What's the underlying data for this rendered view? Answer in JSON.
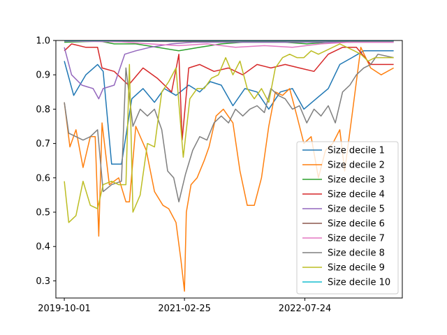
{
  "chart_data": {
    "type": "line",
    "title": "",
    "xlabel": "",
    "ylabel": "",
    "x_start": "2019-10-01",
    "x_end": "2023-08-07",
    "xlim": [
      "2019-08-26",
      "2023-09-13"
    ],
    "ylim": [
      0.25,
      1.0
    ],
    "x_ticks": [
      "2019-10-01",
      "2021-02-25",
      "2022-07-24"
    ],
    "y_ticks": [
      "0.3",
      "0.4",
      "0.5",
      "0.6",
      "0.7",
      "0.8",
      "0.9",
      "1.0"
    ],
    "grid": false,
    "legend_position": "lower-right",
    "series": [
      {
        "name": "Size decile 1",
        "color": "#1f77b4",
        "x": [
          "2019-10-01",
          "2019-11-10",
          "2020-01-01",
          "2020-02-20",
          "2020-03-15",
          "2020-04-20",
          "2020-06-01",
          "2020-07-15",
          "2020-09-01",
          "2020-10-20",
          "2020-12-01",
          "2021-01-20",
          "2021-03-15",
          "2021-05-01",
          "2021-06-15",
          "2021-08-01",
          "2021-09-20",
          "2021-11-10",
          "2022-01-01",
          "2022-02-20",
          "2022-04-10",
          "2022-06-01",
          "2022-07-20",
          "2022-09-10",
          "2022-11-01",
          "2022-12-20",
          "2023-02-10",
          "2023-04-01",
          "2023-06-01",
          "2023-08-07"
        ],
        "y": [
          0.94,
          0.84,
          0.9,
          0.93,
          0.91,
          0.64,
          0.64,
          0.83,
          0.86,
          0.82,
          0.86,
          0.84,
          0.87,
          0.85,
          0.88,
          0.87,
          0.81,
          0.86,
          0.85,
          0.8,
          0.85,
          0.86,
          0.8,
          0.83,
          0.86,
          0.93,
          0.95,
          0.97,
          0.97,
          0.97
        ]
      },
      {
        "name": "Size decile 2",
        "color": "#ff7f0e",
        "x": [
          "2019-10-01",
          "2019-10-25",
          "2019-11-20",
          "2019-12-20",
          "2020-01-20",
          "2020-02-10",
          "2020-02-25",
          "2020-03-10",
          "2020-04-10",
          "2020-05-20",
          "2020-06-20",
          "2020-07-05",
          "2020-08-01",
          "2020-09-15",
          "2020-10-20",
          "2020-11-25",
          "2020-12-20",
          "2021-01-20",
          "2021-02-10",
          "2021-02-25",
          "2021-03-05",
          "2021-03-25",
          "2021-04-20",
          "2021-05-20",
          "2021-06-10",
          "2021-07-10",
          "2021-08-10",
          "2021-09-20",
          "2021-10-20",
          "2021-11-20",
          "2021-12-20",
          "2022-01-20",
          "2022-02-20",
          "2022-03-20",
          "2022-04-20",
          "2022-05-20",
          "2022-06-20",
          "2022-07-20",
          "2022-08-20",
          "2022-09-20",
          "2022-10-20",
          "2022-11-20",
          "2022-12-20",
          "2023-01-10",
          "2023-02-10",
          "2023-03-20",
          "2023-05-01",
          "2023-06-15",
          "2023-08-07"
        ],
        "y": [
          0.82,
          0.69,
          0.74,
          0.63,
          0.72,
          0.72,
          0.43,
          0.76,
          0.58,
          0.6,
          0.53,
          0.53,
          0.75,
          0.68,
          0.56,
          0.52,
          0.51,
          0.47,
          0.36,
          0.27,
          0.5,
          0.58,
          0.6,
          0.65,
          0.69,
          0.78,
          0.8,
          0.76,
          0.62,
          0.52,
          0.52,
          0.6,
          0.75,
          0.85,
          0.84,
          0.86,
          0.78,
          0.7,
          0.72,
          0.6,
          0.68,
          0.7,
          0.74,
          0.62,
          0.78,
          0.98,
          0.92,
          0.9,
          0.92
        ]
      },
      {
        "name": "Size decile 3",
        "color": "#2ca02c",
        "x": [
          "2019-10-01",
          "2020-03-01",
          "2020-05-01",
          "2020-08-01",
          "2020-11-01",
          "2021-02-01",
          "2021-05-01",
          "2021-08-01",
          "2021-11-01",
          "2022-02-01",
          "2022-05-01",
          "2022-08-01",
          "2022-11-01",
          "2023-02-01",
          "2023-05-01",
          "2023-08-07"
        ],
        "y": [
          0.995,
          0.998,
          0.99,
          0.99,
          0.98,
          0.97,
          0.98,
          0.99,
          0.995,
          0.995,
          0.995,
          0.99,
          0.995,
          0.995,
          0.998,
          0.998
        ]
      },
      {
        "name": "Size decile 4",
        "color": "#d62728",
        "x": [
          "2019-10-01",
          "2019-11-01",
          "2020-01-01",
          "2020-02-20",
          "2020-03-10",
          "2020-05-01",
          "2020-07-01",
          "2020-09-01",
          "2020-11-01",
          "2021-01-01",
          "2021-02-01",
          "2021-02-15",
          "2021-03-15",
          "2021-05-01",
          "2021-07-01",
          "2021-09-01",
          "2021-11-01",
          "2022-01-01",
          "2022-03-01",
          "2022-05-01",
          "2022-07-01",
          "2022-09-01",
          "2022-11-01",
          "2023-01-01",
          "2023-03-01",
          "2023-05-01",
          "2023-08-07"
        ],
        "y": [
          0.97,
          0.99,
          0.98,
          0.98,
          0.92,
          0.91,
          0.87,
          0.92,
          0.89,
          0.85,
          0.96,
          0.71,
          0.92,
          0.93,
          0.91,
          0.92,
          0.9,
          0.93,
          0.92,
          0.93,
          0.92,
          0.91,
          0.96,
          0.98,
          0.98,
          0.93,
          0.93
        ]
      },
      {
        "name": "Size decile 5",
        "color": "#9467bd",
        "x": [
          "2019-10-01",
          "2019-11-01",
          "2019-12-15",
          "2020-02-01",
          "2020-02-25",
          "2020-03-15",
          "2020-05-01",
          "2020-06-15",
          "2020-08-01",
          "2020-10-01",
          "2021-01-01",
          "2021-04-01",
          "2021-07-01",
          "2021-10-01",
          "2022-01-01",
          "2022-04-01",
          "2022-07-01",
          "2022-10-01",
          "2023-01-01",
          "2023-04-01",
          "2023-08-07"
        ],
        "y": [
          0.98,
          0.9,
          0.87,
          0.86,
          0.83,
          0.86,
          0.87,
          0.96,
          0.97,
          0.98,
          0.99,
          0.995,
          0.995,
          0.995,
          0.995,
          0.995,
          0.995,
          0.995,
          0.995,
          0.995,
          0.995
        ]
      },
      {
        "name": "Size decile 6",
        "color": "#8c564b",
        "x": [
          "2019-10-01",
          "2020-06-01",
          "2021-02-01",
          "2021-10-01",
          "2022-06-01",
          "2023-02-01",
          "2023-08-07"
        ],
        "y": [
          0.998,
          0.998,
          0.997,
          0.998,
          0.998,
          0.998,
          0.998
        ]
      },
      {
        "name": "Size decile 7",
        "color": "#e377c2",
        "x": [
          "2019-10-01",
          "2020-06-01",
          "2020-10-01",
          "2021-02-01",
          "2021-06-01",
          "2021-10-01",
          "2022-02-01",
          "2022-06-01",
          "2022-10-01",
          "2023-02-01",
          "2023-08-07"
        ],
        "y": [
          0.998,
          0.996,
          0.99,
          0.985,
          0.99,
          0.98,
          0.985,
          0.98,
          0.99,
          0.995,
          0.995
        ]
      },
      {
        "name": "Size decile 8",
        "color": "#7f7f7f",
        "x": [
          "2019-10-01",
          "2019-10-20",
          "2019-11-20",
          "2019-12-20",
          "2020-01-20",
          "2020-02-20",
          "2020-03-15",
          "2020-04-20",
          "2020-06-01",
          "2020-06-20",
          "2020-07-20",
          "2020-08-20",
          "2020-09-20",
          "2020-10-20",
          "2020-11-20",
          "2020-12-15",
          "2021-01-10",
          "2021-02-01",
          "2021-03-01",
          "2021-04-01",
          "2021-05-01",
          "2021-06-01",
          "2021-07-01",
          "2021-08-01",
          "2021-09-01",
          "2021-10-01",
          "2021-11-01",
          "2021-12-01",
          "2022-01-01",
          "2022-02-01",
          "2022-03-01",
          "2022-04-01",
          "2022-05-01",
          "2022-06-01",
          "2022-07-01",
          "2022-08-01",
          "2022-09-01",
          "2022-10-01",
          "2022-11-01",
          "2022-12-01",
          "2023-01-01",
          "2023-02-01",
          "2023-03-01",
          "2023-04-01",
          "2023-05-01",
          "2023-06-01",
          "2023-08-07"
        ],
        "y": [
          0.82,
          0.73,
          0.72,
          0.71,
          0.72,
          0.74,
          0.56,
          0.58,
          0.59,
          0.92,
          0.75,
          0.8,
          0.78,
          0.8,
          0.74,
          0.62,
          0.6,
          0.53,
          0.61,
          0.68,
          0.72,
          0.71,
          0.76,
          0.78,
          0.76,
          0.8,
          0.78,
          0.8,
          0.81,
          0.79,
          0.86,
          0.84,
          0.83,
          0.8,
          0.81,
          0.76,
          0.8,
          0.78,
          0.81,
          0.76,
          0.85,
          0.87,
          0.9,
          0.92,
          0.93,
          0.96,
          0.95
        ]
      },
      {
        "name": "Size decile 9",
        "color": "#bcbd22",
        "x": [
          "2019-10-01",
          "2019-10-20",
          "2019-11-20",
          "2019-12-20",
          "2020-01-20",
          "2020-02-20",
          "2020-03-15",
          "2020-04-20",
          "2020-05-20",
          "2020-06-20",
          "2020-07-05",
          "2020-07-20",
          "2020-08-20",
          "2020-09-20",
          "2020-10-20",
          "2020-11-20",
          "2020-12-20",
          "2021-01-20",
          "2021-02-20",
          "2021-03-20",
          "2021-04-20",
          "2021-05-20",
          "2021-06-20",
          "2021-07-20",
          "2021-08-20",
          "2021-09-20",
          "2021-10-20",
          "2021-11-20",
          "2021-12-20",
          "2022-01-20",
          "2022-02-20",
          "2022-03-20",
          "2022-04-20",
          "2022-05-20",
          "2022-06-20",
          "2022-07-20",
          "2022-08-20",
          "2022-09-20",
          "2022-10-20",
          "2022-11-20",
          "2022-12-20",
          "2023-01-20",
          "2023-02-20",
          "2023-03-20",
          "2023-04-20",
          "2023-05-20",
          "2023-08-07"
        ],
        "y": [
          0.59,
          0.47,
          0.49,
          0.59,
          0.52,
          0.51,
          0.58,
          0.59,
          0.58,
          0.58,
          0.93,
          0.5,
          0.55,
          0.7,
          0.69,
          0.85,
          0.88,
          0.92,
          0.66,
          0.83,
          0.86,
          0.86,
          0.89,
          0.9,
          0.95,
          0.9,
          0.94,
          0.86,
          0.83,
          0.86,
          0.82,
          0.92,
          0.95,
          0.96,
          0.95,
          0.95,
          0.97,
          0.96,
          0.97,
          0.98,
          0.99,
          0.98,
          0.97,
          0.96,
          0.94,
          0.95,
          0.95
        ]
      },
      {
        "name": "Size decile 10",
        "color": "#17becf",
        "x": [
          "2019-10-01",
          "2021-01-01",
          "2022-04-01",
          "2023-08-07"
        ],
        "y": [
          0.999,
          0.999,
          0.999,
          0.999
        ]
      }
    ]
  }
}
